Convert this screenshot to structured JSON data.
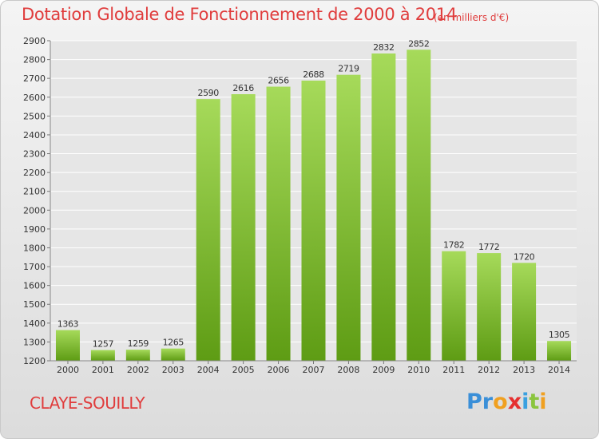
{
  "title": "Dotation Globale de Fonctionnement de 2000 à 2014",
  "unit": "(en milliers d'€)",
  "commune": "CLAYE-SOUILLY",
  "logo": {
    "letters": [
      "P",
      "r",
      "o",
      "x",
      "i",
      "t",
      "i"
    ],
    "colors": [
      "#3a8fd8",
      "#3a8fd8",
      "#f0a020",
      "#e53030",
      "#3aa0e0",
      "#8bc53f",
      "#f0a020"
    ]
  },
  "colors": {
    "bar_light": "#a6da5a",
    "bar_dark": "#5e9c14",
    "title": "#e03c3c",
    "grid": "#ffffff"
  },
  "chart_data": {
    "type": "bar",
    "categories": [
      "2000",
      "2001",
      "2002",
      "2003",
      "2004",
      "2005",
      "2006",
      "2007",
      "2008",
      "2009",
      "2010",
      "2011",
      "2012",
      "2013",
      "2014"
    ],
    "values": [
      1363,
      1257,
      1259,
      1265,
      2590,
      2616,
      2656,
      2688,
      2719,
      2832,
      2852,
      1782,
      1772,
      1720,
      1305
    ],
    "value_labels": [
      "1363",
      "1257",
      "1259",
      "1265",
      "2590",
      "2616",
      "2656",
      "2688",
      "2719",
      "2832",
      "2852",
      "1782",
      "1772",
      "1720",
      "1305"
    ],
    "yticks": [
      "1200",
      "1300",
      "1400",
      "1500",
      "1600",
      "1700",
      "1800",
      "1900",
      "2000",
      "2100",
      "2200",
      "2300",
      "2400",
      "2500",
      "2600",
      "2700",
      "2800",
      "2900"
    ],
    "ylim": [
      1200,
      2900
    ],
    "grid": true,
    "title": "Dotation Globale de Fonctionnement de 2000 à 2014",
    "xlabel": "",
    "ylabel": ""
  }
}
